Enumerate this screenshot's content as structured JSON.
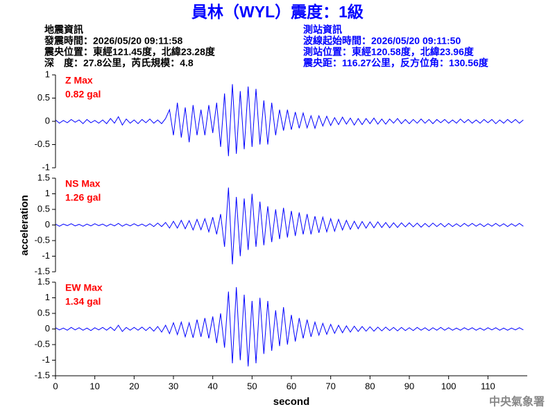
{
  "header": {
    "title": "員林（WYL）震度：1級",
    "left": [
      "地震資訊",
      "發震時間：2026/05/20 09:11:58",
      "震央位置：東經121.45度，北緯23.28度",
      "深　度：27.8公里，芮氏規模：4.8"
    ],
    "right": [
      "測站資訊",
      "波線起始時間：2026/05/20 09:11:50",
      "測站位置：東經120.58度，北緯23.96度",
      "震央距：116.27公里，反方位角：130.56度"
    ],
    "footer": "中央氣象署"
  },
  "chart_data": {
    "type": "line",
    "xlabel": "second",
    "ylabel": "acceleration",
    "xlim": [
      0,
      120
    ],
    "xticks": [
      0,
      10,
      20,
      30,
      40,
      50,
      60,
      70,
      80,
      90,
      100,
      110
    ],
    "x": [
      0,
      1,
      2,
      3,
      4,
      5,
      6,
      7,
      8,
      9,
      10,
      11,
      12,
      13,
      14,
      15,
      16,
      17,
      18,
      19,
      20,
      21,
      22,
      23,
      24,
      25,
      26,
      27,
      28,
      29,
      30,
      31,
      32,
      33,
      34,
      35,
      36,
      37,
      38,
      39,
      40,
      41,
      42,
      43,
      44,
      45,
      46,
      47,
      48,
      49,
      50,
      51,
      52,
      53,
      54,
      55,
      56,
      57,
      58,
      59,
      60,
      61,
      62,
      63,
      64,
      65,
      66,
      67,
      68,
      69,
      70,
      71,
      72,
      73,
      74,
      75,
      76,
      77,
      78,
      79,
      80,
      81,
      82,
      83,
      84,
      85,
      86,
      87,
      88,
      89,
      90,
      91,
      92,
      93,
      94,
      95,
      96,
      97,
      98,
      99,
      100,
      101,
      102,
      103,
      104,
      105,
      106,
      107,
      108,
      109,
      110,
      111,
      112,
      113,
      114,
      115,
      116,
      117,
      118,
      119
    ],
    "series": [
      {
        "name": "Z Max",
        "annotation": "0.82 gal",
        "color": "#0000ff",
        "label_color": "#ff0000",
        "ylim": [
          -1,
          1
        ],
        "yticks": [
          -1,
          -0.5,
          0,
          0.5,
          1
        ],
        "values": [
          0.03,
          -0.04,
          0.02,
          -0.03,
          0.04,
          -0.02,
          0.03,
          -0.05,
          0.04,
          -0.03,
          0.02,
          -0.04,
          0.03,
          -0.05,
          0.06,
          -0.04,
          0.1,
          -0.08,
          0.05,
          -0.04,
          0.03,
          -0.05,
          0.04,
          -0.03,
          0.05,
          -0.04,
          0.03,
          -0.05,
          0.06,
          0.25,
          -0.3,
          0.4,
          -0.35,
          0.3,
          -0.45,
          0.35,
          -0.3,
          0.25,
          -0.3,
          0.35,
          -0.25,
          0.4,
          -0.55,
          0.6,
          -0.75,
          0.8,
          -0.7,
          0.65,
          -0.6,
          0.75,
          -0.55,
          0.7,
          -0.5,
          0.45,
          -0.5,
          0.4,
          -0.3,
          0.25,
          -0.2,
          0.25,
          -0.18,
          0.2,
          -0.15,
          0.18,
          -0.14,
          0.12,
          -0.15,
          0.12,
          -0.1,
          0.11,
          -0.09,
          0.08,
          -0.07,
          0.09,
          -0.06,
          0.07,
          -0.08,
          0.06,
          -0.07,
          0.06,
          -0.05,
          0.07,
          -0.06,
          0.05,
          -0.06,
          0.05,
          -0.04,
          0.06,
          -0.05,
          0.04,
          -0.05,
          0.04,
          -0.04,
          0.05,
          -0.04,
          0.04,
          -0.05,
          0.04,
          -0.03,
          0.04,
          -0.04,
          0.03,
          -0.04,
          0.05,
          -0.03,
          0.04,
          -0.04,
          0.03,
          -0.04,
          0.04,
          -0.03,
          0.04,
          -0.05,
          0.03,
          -0.04,
          0.04,
          -0.03,
          0.04,
          -0.04,
          0.03
        ]
      },
      {
        "name": "NS Max",
        "annotation": "1.26 gal",
        "color": "#0000ff",
        "label_color": "#ff0000",
        "ylim": [
          -1.5,
          1.5
        ],
        "yticks": [
          -1.5,
          -1,
          -0.5,
          0,
          0.5,
          1,
          1.5
        ],
        "values": [
          0.03,
          -0.04,
          0.03,
          -0.02,
          0.04,
          -0.03,
          0.02,
          -0.04,
          0.03,
          -0.03,
          0.04,
          -0.02,
          0.03,
          -0.04,
          0.03,
          -0.03,
          0.05,
          -0.04,
          0.03,
          -0.03,
          0.04,
          -0.03,
          0.03,
          -0.04,
          0.04,
          -0.05,
          0.06,
          -0.05,
          0.08,
          -0.1,
          0.12,
          -0.1,
          0.15,
          -0.12,
          0.14,
          -0.16,
          0.18,
          -0.15,
          0.2,
          -0.22,
          0.25,
          -0.3,
          0.35,
          -0.7,
          1.2,
          -1.26,
          0.9,
          -1.0,
          0.85,
          -0.8,
          1.0,
          -0.7,
          0.75,
          -0.65,
          0.6,
          -0.55,
          0.5,
          -0.45,
          0.55,
          -0.4,
          0.45,
          -0.35,
          0.4,
          -0.3,
          0.35,
          -0.3,
          0.28,
          -0.25,
          0.25,
          -0.22,
          0.2,
          -0.2,
          0.18,
          -0.16,
          0.15,
          -0.14,
          0.12,
          -0.12,
          0.11,
          -0.1,
          0.1,
          -0.09,
          0.1,
          -0.08,
          0.08,
          -0.09,
          0.07,
          -0.08,
          0.07,
          -0.06,
          0.07,
          -0.06,
          0.06,
          -0.07,
          0.05,
          -0.06,
          0.06,
          -0.05,
          0.05,
          -0.06,
          0.05,
          -0.05,
          0.04,
          -0.05,
          0.05,
          -0.04,
          0.05,
          -0.04,
          0.04,
          -0.05,
          0.04,
          -0.04,
          0.05,
          -0.04,
          0.04,
          -0.05,
          0.04,
          -0.04,
          0.05,
          -0.04
        ]
      },
      {
        "name": "EW Max",
        "annotation": "1.34 gal",
        "color": "#0000ff",
        "label_color": "#ff0000",
        "ylim": [
          -1.5,
          1.5
        ],
        "yticks": [
          -1.5,
          -1,
          -0.5,
          0,
          0.5,
          1,
          1.5
        ],
        "values": [
          0.04,
          -0.03,
          0.03,
          -0.04,
          0.05,
          -0.03,
          0.04,
          -0.04,
          0.03,
          -0.05,
          0.04,
          -0.03,
          0.05,
          -0.04,
          0.06,
          -0.05,
          0.12,
          -0.08,
          0.05,
          -0.04,
          0.05,
          -0.04,
          0.06,
          -0.05,
          0.06,
          -0.07,
          0.08,
          -0.1,
          0.12,
          -0.15,
          0.2,
          -0.18,
          0.22,
          -0.25,
          0.2,
          -0.28,
          0.3,
          -0.25,
          0.35,
          -0.3,
          0.4,
          -0.45,
          0.5,
          -0.6,
          1.2,
          -1.1,
          1.34,
          -1.0,
          1.1,
          -1.2,
          0.9,
          -1.1,
          1.0,
          -0.8,
          0.9,
          -0.7,
          0.6,
          -0.55,
          0.7,
          -0.5,
          0.45,
          -0.4,
          0.35,
          -0.3,
          0.3,
          -0.25,
          0.22,
          -0.2,
          0.18,
          -0.17,
          0.15,
          -0.14,
          0.12,
          -0.12,
          0.1,
          -0.1,
          0.09,
          -0.08,
          0.08,
          -0.07,
          0.07,
          -0.07,
          0.06,
          -0.06,
          0.06,
          -0.05,
          0.05,
          -0.06,
          0.05,
          -0.05,
          0.04,
          -0.05,
          0.05,
          -0.04,
          0.04,
          -0.05,
          0.04,
          -0.04,
          0.05,
          -0.04,
          0.04,
          -0.04,
          0.03,
          -0.04,
          0.04,
          -0.03,
          0.04,
          -0.04,
          0.03,
          -0.04,
          0.04,
          -0.03,
          0.04,
          -0.04,
          0.03,
          -0.04,
          0.03,
          -0.03,
          0.04,
          -0.03
        ]
      }
    ]
  }
}
